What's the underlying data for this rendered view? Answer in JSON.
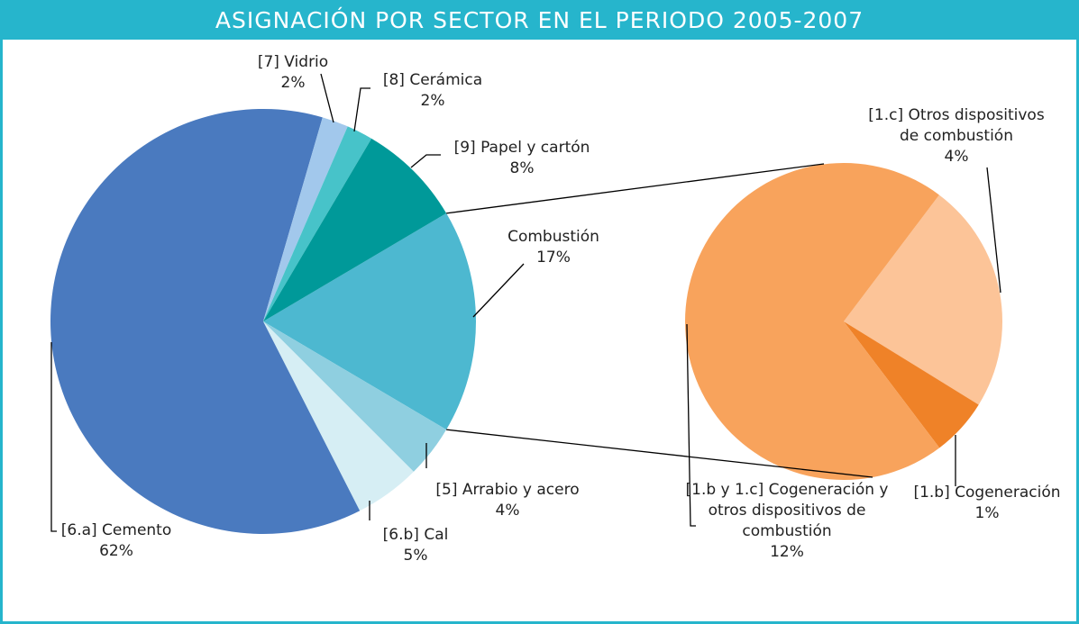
{
  "chart_data": [
    {
      "type": "pie",
      "title": "ASIGNACIÓN POR SECTOR EN EL PERIODO 2005-2007",
      "categories": [
        "Combustión",
        "[5] Arrabio y acero",
        "[6.b] Cal",
        "[6.a] Cemento",
        "[7] Vidrio",
        "[8] Cerámica",
        "[9] Papel y cartón"
      ],
      "values": [
        17,
        4,
        5,
        62,
        2,
        2,
        8
      ],
      "value_labels": [
        "17%",
        "4%",
        "5%",
        "62%",
        "2%",
        "2%",
        "8%"
      ],
      "colors": [
        "#4db8d0",
        "#8fcfe0",
        "#d6eef4",
        "#4a7abf",
        "#a2c8ec",
        "#47c3c9",
        "#009999"
      ]
    },
    {
      "type": "pie",
      "categories": [
        "[1.c] Otros dispositivos de combustión",
        "[1.b] Cogeneración",
        "[1.b y 1.c] Cogeneración y otros dispositivos de combustión"
      ],
      "values": [
        4,
        1,
        12
      ],
      "value_labels": [
        "4%",
        "1%",
        "12%"
      ],
      "colors": [
        "#fcc498",
        "#ef8228",
        "#f8a35c"
      ]
    }
  ]
}
